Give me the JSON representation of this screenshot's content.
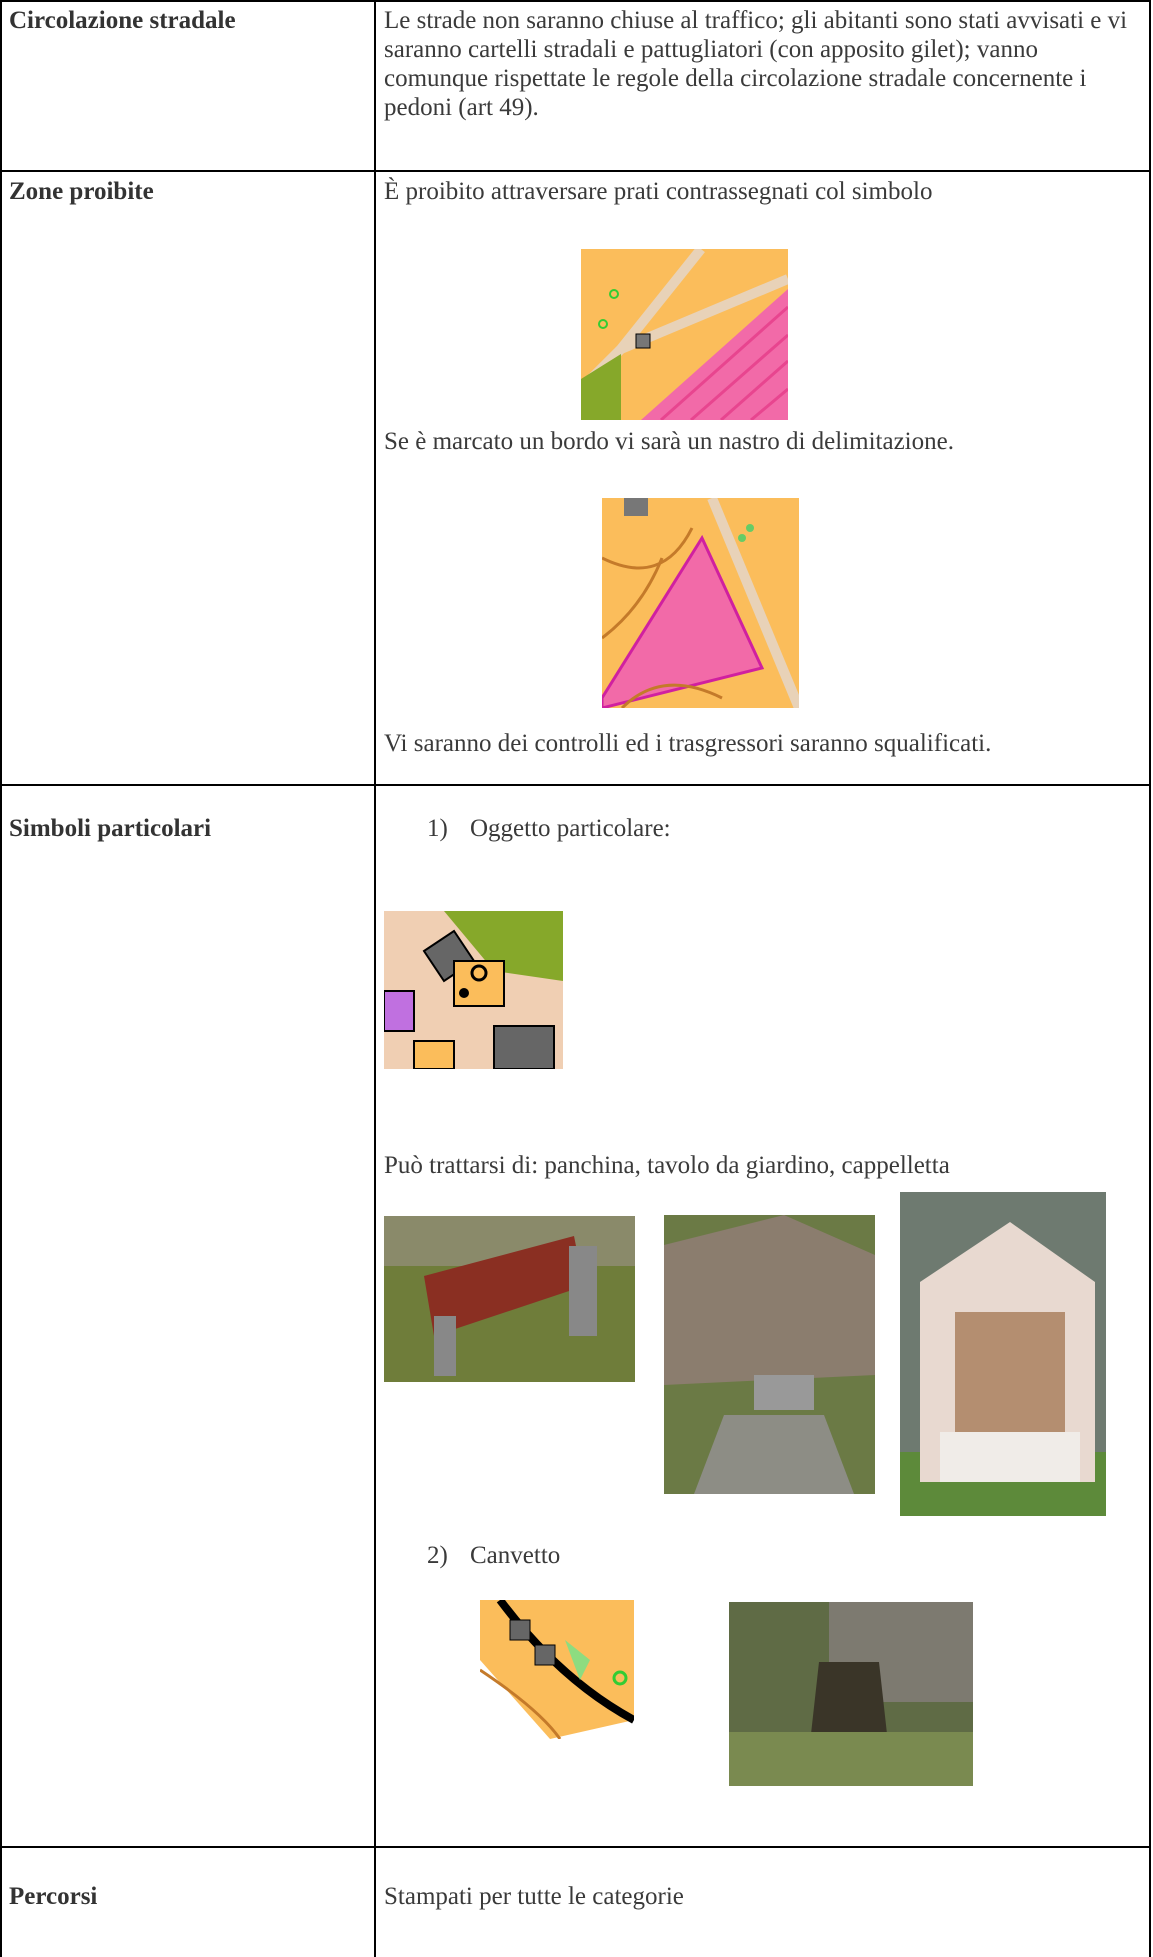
{
  "table": {
    "rows": [
      {
        "label": "Circolazione stradale",
        "paragraphs": [
          "Le strade non saranno chiuse al traffico; gli abitanti sono stati avvisati e vi saranno cartelli stradali e pattugliatori (con apposito gilet); vanno comunque rispettate le regole della circolazione stradale concernente i pedoni (art 49)."
        ]
      },
      {
        "label": "Zone proibite",
        "paragraphs": [
          "È proibito attraversare prati contrassegnati col simbolo",
          "Se è marcato un bordo vi sarà un nastro di delimitazione.",
          "Vi saranno dei controlli ed i trasgressori saranno squalificati."
        ]
      },
      {
        "label": "Simboli particolari",
        "items": [
          {
            "marker": "1)",
            "text": "Oggetto particolare:"
          },
          {
            "marker": "2)",
            "text": "Canvetto"
          }
        ],
        "paragraphs": [
          "Può trattarsi di: panchina, tavolo da giardino, cappelletta"
        ]
      },
      {
        "label": "Percorsi",
        "paragraphs": [
          "Stampati per tutte le categorie"
        ]
      }
    ]
  }
}
